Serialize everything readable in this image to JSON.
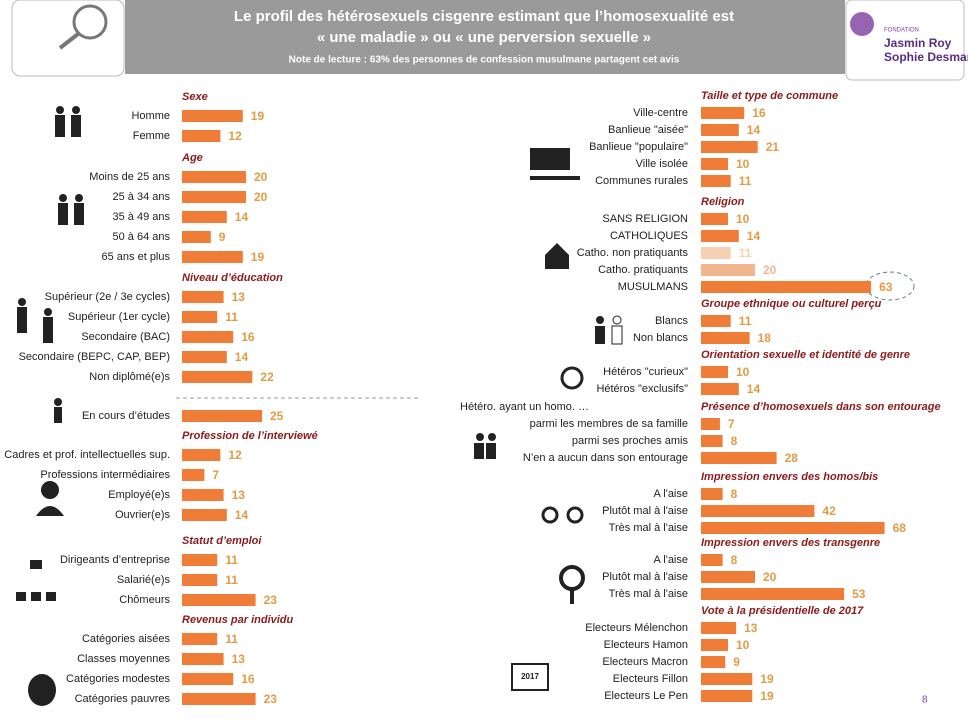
{
  "header": {
    "title_lines": [
      "Le profil des hétérosexuels cisgenre estimant que l’homosexualité est",
      "« une maladie » ou « une perversion sexuelle »"
    ],
    "note": "Note de lecture : 63% des personnes  de confession musulmane partagent cet avis"
  },
  "logo": {
    "small": "FONDATION",
    "line1": "Jasmin Roy",
    "line2": "Sophie Desmarais"
  },
  "bar_color": "#ef7d37",
  "value_color": "#e39b45",
  "left": [
    {
      "title": "Sexe",
      "items": [
        {
          "label": "Homme",
          "value": 19
        },
        {
          "label": "Femme",
          "value": 12
        }
      ]
    },
    {
      "title": "Age",
      "items": [
        {
          "label": "Moins de 25 ans",
          "value": 20
        },
        {
          "label": "25 à 34 ans",
          "value": 20
        },
        {
          "label": "35 à 49 ans",
          "value": 14
        },
        {
          "label": "50 à 64 ans",
          "value": 9
        },
        {
          "label": "65 ans et plus",
          "value": 19
        }
      ]
    },
    {
      "title": "Niveau d’éducation",
      "items": [
        {
          "label": "Supérieur (2e / 3e cycles)",
          "value": 13
        },
        {
          "label": "Supérieur (1er cycle)",
          "value": 11
        },
        {
          "label": "Secondaire (BAC)",
          "value": 16
        },
        {
          "label": "Secondaire (BEPC, CAP, BEP)",
          "value": 14
        },
        {
          "label": "Non diplômé(e)s",
          "value": 22
        }
      ]
    },
    {
      "items": [
        {
          "label": "En cours d’études",
          "value": 25
        }
      ]
    },
    {
      "title": "Profession de l’interviewé",
      "items": [
        {
          "label": "Cadres et prof. intellectuelles sup.",
          "value": 12
        },
        {
          "label": "Professions intermédiaires",
          "value": 7
        },
        {
          "label": "Employé(e)s",
          "value": 13
        },
        {
          "label": "Ouvrier(e)s",
          "value": 14
        }
      ]
    },
    {
      "title": "Statut d’emploi",
      "items": [
        {
          "label": "Dirigeants d’entreprise",
          "value": 11
        },
        {
          "label": "Salarié(e)s",
          "value": 11
        },
        {
          "label": "Chômeurs",
          "value": 23
        }
      ]
    },
    {
      "title": "Revenus par individu",
      "items": [
        {
          "label": "Catégories aisées",
          "value": 11
        },
        {
          "label": "Classes moyennes",
          "value": 13
        },
        {
          "label": "Catégories modestes",
          "value": 16
        },
        {
          "label": "Catégories pauvres",
          "value": 23
        }
      ]
    }
  ],
  "right": [
    {
      "title": "Taille et type de commune",
      "items": [
        {
          "label": "Ville-centre",
          "value": 16
        },
        {
          "label": "Banlieue \"aisée\"",
          "value": 14
        },
        {
          "label": "Banlieue \"populaire\"",
          "value": 21
        },
        {
          "label": "Ville isolée",
          "value": 10
        },
        {
          "label": "Communes rurales",
          "value": 11
        }
      ]
    },
    {
      "title": "Religion",
      "items": [
        {
          "label": "SANS RELIGION",
          "value": 10
        },
        {
          "label": "CATHOLIQUES",
          "value": 14
        },
        {
          "label": "Catho. non pratiquants",
          "value": 11,
          "color": "#f7cfb2"
        },
        {
          "label": "Catho. pratiquants",
          "value": 20,
          "color": "#f2b68e"
        },
        {
          "label": "MUSULMANS",
          "value": 63
        }
      ]
    },
    {
      "title": "Groupe ethnique ou culturel perçu",
      "items": [
        {
          "label": "Blancs",
          "value": 11
        },
        {
          "label": "Non blancs",
          "value": 18
        }
      ]
    },
    {
      "title": "Orientation sexuelle et identité de genre",
      "items": [
        {
          "label": "Hétéros \"curieux\"",
          "value": 10
        },
        {
          "label": "Hétéros \"exclusifs\"",
          "value": 14
        }
      ]
    },
    {
      "title": "Présence d’homosexuels dans son entourage",
      "aside": "Hétéro. ayant un homo. …",
      "items": [
        {
          "label": "parmi les membres de sa famille",
          "value": 7
        },
        {
          "label": "parmi ses proches amis",
          "value": 8
        },
        {
          "label": "N’en a aucun dans son entourage",
          "value": 28
        }
      ]
    },
    {
      "title": "Impression envers des homos/bis",
      "items": [
        {
          "label": "A l'aise",
          "value": 8
        },
        {
          "label": "Plutôt mal à l'aise",
          "value": 42
        },
        {
          "label": "Très mal à l'aise",
          "value": 68
        }
      ]
    },
    {
      "title": "Impression envers des transgenre",
      "items": [
        {
          "label": "A l'aise",
          "value": 8
        },
        {
          "label": "Plutôt mal à l'aise",
          "value": 20
        },
        {
          "label": "Très mal à l'aise",
          "value": 53
        }
      ]
    },
    {
      "title": "Vote à la présidentielle de 2017",
      "items": [
        {
          "label": "Electeurs Mélenchon",
          "value": 13
        },
        {
          "label": "Electeurs Hamon",
          "value": 10
        },
        {
          "label": "Electeurs Macron",
          "value": 9
        },
        {
          "label": "Electeurs Fillon",
          "value": 19
        },
        {
          "label": "Electeurs Le Pen",
          "value": 19
        }
      ]
    }
  ],
  "ballot_year": "2017",
  "page_number": "8"
}
